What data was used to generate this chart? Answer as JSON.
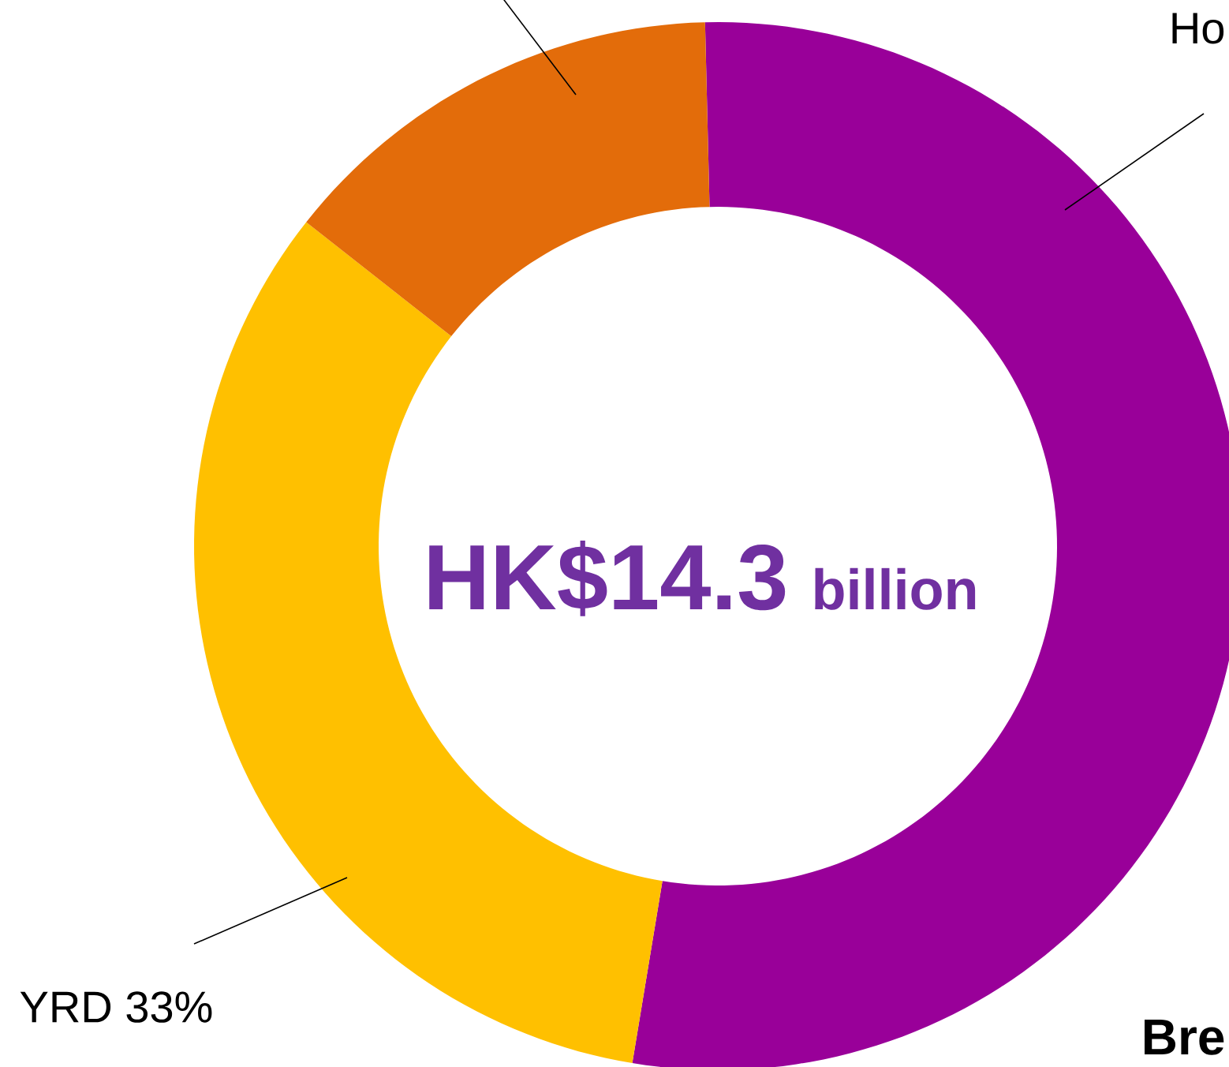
{
  "chart_data": {
    "type": "donut",
    "categories": [
      "Ho",
      "YRD",
      null
    ],
    "values": [
      53,
      33,
      14
    ],
    "colors": [
      "#990099",
      "#ffc000",
      "#e36c0a"
    ],
    "value_labels": [
      null,
      "33%",
      null
    ],
    "annotations": [
      "HK$14.3",
      "billion",
      "Bre"
    ]
  }
}
